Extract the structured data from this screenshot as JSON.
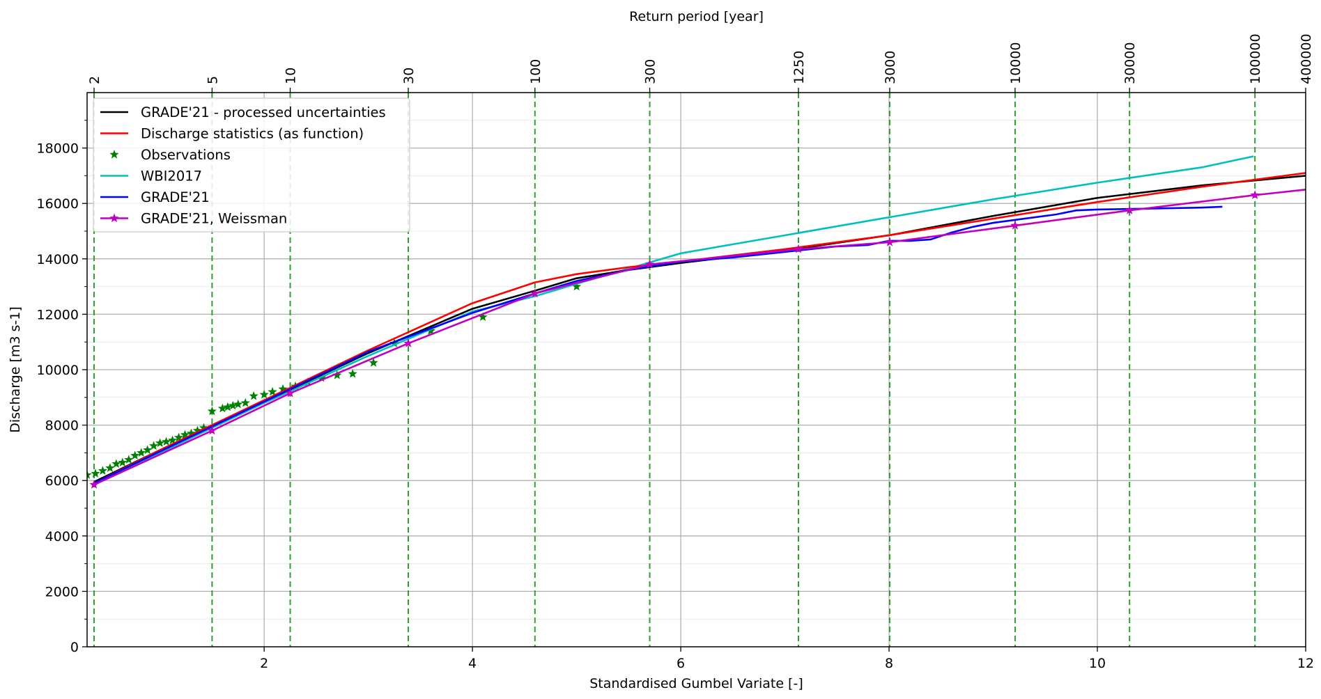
{
  "chart_data": {
    "type": "line",
    "xlabel": "Standardised Gumbel Variate [-]",
    "ylabel": "Discharge [m3 s-1]",
    "top_xlabel": "Return period [year]",
    "xlim": [
      0.3,
      12
    ],
    "ylim": [
      0,
      20000
    ],
    "x_ticks": [
      2,
      4,
      6,
      8,
      10,
      12
    ],
    "y_ticks": [
      0,
      2000,
      4000,
      6000,
      8000,
      10000,
      12000,
      14000,
      16000,
      18000
    ],
    "grid": true,
    "legend_position": "top-left",
    "return_periods": [
      {
        "label": "2",
        "x": 0.367
      },
      {
        "label": "5",
        "x": 1.5
      },
      {
        "label": "10",
        "x": 2.25
      },
      {
        "label": "30",
        "x": 3.384
      },
      {
        "label": "100",
        "x": 4.6
      },
      {
        "label": "300",
        "x": 5.702
      },
      {
        "label": "1250",
        "x": 7.13
      },
      {
        "label": "3000",
        "x": 8.006
      },
      {
        "label": "10000",
        "x": 9.21
      },
      {
        "label": "30000",
        "x": 10.309
      },
      {
        "label": "100000",
        "x": 11.513
      },
      {
        "label": "400000",
        "x": 12.899
      }
    ],
    "series": [
      {
        "name": "GRADE'21 - processed uncertainties",
        "color": "#000000",
        "marker": "none",
        "x": [
          0.367,
          1,
          2,
          3,
          4,
          4.6,
          5,
          5.5,
          6,
          7,
          8,
          9,
          10,
          11,
          12
        ],
        "y": [
          5950,
          7100,
          8850,
          10600,
          12200,
          12850,
          13300,
          13600,
          13850,
          14300,
          14850,
          15550,
          16200,
          16650,
          17000
        ]
      },
      {
        "name": "Discharge statistics (as function)",
        "color": "#ff0000",
        "marker": "none",
        "x": [
          0.367,
          1,
          2,
          3,
          4,
          4.6,
          5,
          5.5,
          6,
          7,
          8,
          9,
          10,
          11,
          12
        ],
        "y": [
          5900,
          7100,
          8900,
          10700,
          12400,
          13150,
          13450,
          13700,
          13900,
          14350,
          14850,
          15450,
          16050,
          16600,
          17100
        ]
      },
      {
        "name": "Observations",
        "color": "#008000",
        "marker": "star",
        "line": false,
        "x": [
          0.3,
          0.38,
          0.45,
          0.52,
          0.58,
          0.64,
          0.7,
          0.76,
          0.82,
          0.88,
          0.94,
          1.0,
          1.06,
          1.12,
          1.18,
          1.24,
          1.3,
          1.36,
          1.42,
          1.5,
          1.6,
          1.65,
          1.7,
          1.75,
          1.82,
          1.9,
          2.0,
          2.08,
          2.18,
          2.3,
          2.42,
          2.55,
          2.7,
          2.85,
          3.05,
          3.25,
          3.6,
          4.1,
          5.0
        ],
        "y": [
          6200,
          6250,
          6350,
          6450,
          6600,
          6650,
          6750,
          6900,
          7000,
          7100,
          7250,
          7350,
          7400,
          7450,
          7550,
          7650,
          7700,
          7800,
          7900,
          8500,
          8600,
          8650,
          8700,
          8750,
          8800,
          9050,
          9100,
          9200,
          9300,
          9400,
          9550,
          9700,
          9800,
          9850,
          10250,
          10950,
          11400,
          11900,
          13000
        ]
      },
      {
        "name": "WBI2017",
        "color": "#00bfbf",
        "marker": "none",
        "x": [
          0.367,
          1,
          2,
          3,
          4,
          4.6,
          5,
          5.5,
          6,
          7,
          8,
          9,
          10,
          11,
          11.5
        ],
        "y": [
          5850,
          7000,
          8800,
          10500,
          12100,
          12650,
          13100,
          13650,
          14200,
          14850,
          15500,
          16150,
          16750,
          17300,
          17700
        ]
      },
      {
        "name": "GRADE'21",
        "color": "#0000ff",
        "marker": "none",
        "x": [
          0.367,
          1,
          2,
          3,
          4,
          4.6,
          5,
          5.5,
          6,
          6.5,
          7,
          7.5,
          7.8,
          8.0,
          8.2,
          8.4,
          8.6,
          8.8,
          9.0,
          9.2,
          9.4,
          9.6,
          9.8,
          10.0,
          10.3,
          10.6,
          11.0,
          11.2
        ],
        "y": [
          5900,
          7050,
          8850,
          10650,
          12050,
          12750,
          13200,
          13600,
          13900,
          14050,
          14250,
          14450,
          14500,
          14650,
          14650,
          14700,
          14950,
          15150,
          15300,
          15400,
          15500,
          15600,
          15750,
          15780,
          15800,
          15820,
          15850,
          15880
        ]
      },
      {
        "name": "GRADE'21, Weissman",
        "color": "#bf00bf",
        "marker": "star",
        "line": true,
        "x": [
          0.367,
          1.5,
          2.25,
          3.384,
          4.6,
          5.702,
          7.13,
          8.006,
          9.21,
          10.309,
          11.513,
          12.0
        ],
        "y": [
          5850,
          7800,
          9150,
          10950,
          12750,
          13800,
          14350,
          14600,
          15200,
          15750,
          16300,
          16500
        ],
        "marker_x": [
          0.367,
          1.5,
          2.25,
          3.384,
          4.6,
          5.702,
          7.13,
          8.006,
          9.21,
          10.309,
          11.513
        ]
      }
    ]
  }
}
